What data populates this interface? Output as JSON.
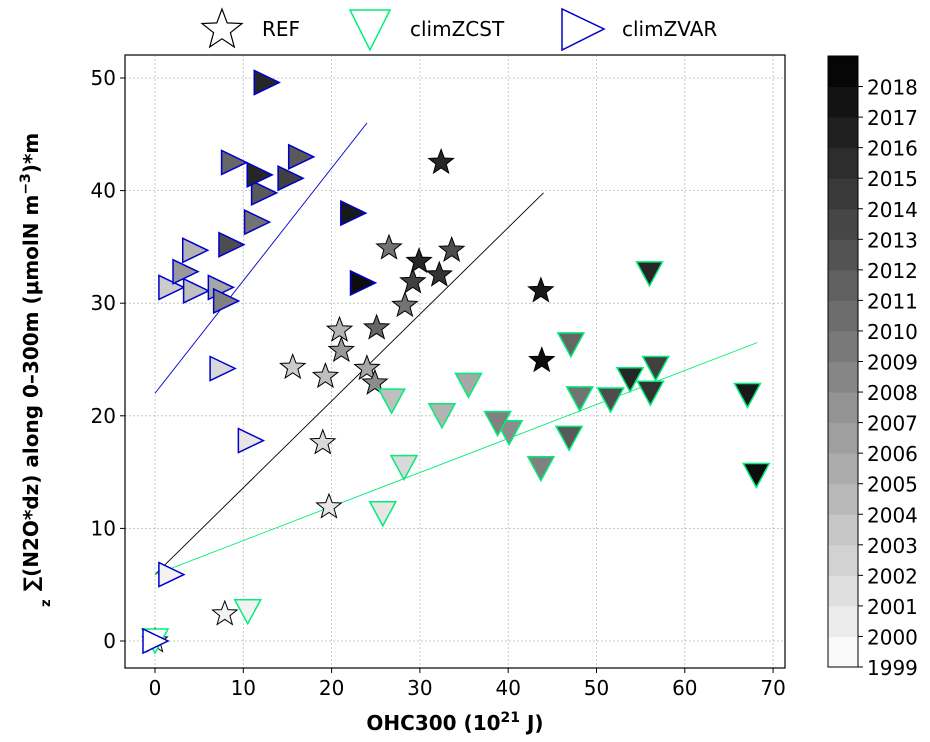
{
  "chart_data": {
    "type": "scatter",
    "title": "",
    "xlabel": "OHC300 (10",
    "xlabel_sup": "21",
    "xlabel_tail": " J)",
    "ylabel": "∑(N2O*dz) along 0–300m (μmolN m",
    "ylabel_sup": "−3",
    "ylabel_tail": ")*m",
    "ylabel_sub": "z",
    "xlim": [
      -3.5,
      71.5
    ],
    "ylim": [
      -2.5,
      52
    ],
    "xticks": [
      0,
      10,
      20,
      30,
      40,
      50,
      60,
      70
    ],
    "yticks": [
      0,
      10,
      20,
      30,
      40,
      50
    ],
    "grid": true,
    "legend_position": "top-center",
    "colorbar": {
      "cmap": "Greys",
      "min": 1999,
      "max": 2019,
      "ticks": [
        1999,
        2000,
        2001,
        2002,
        2003,
        2004,
        2005,
        2006,
        2007,
        2008,
        2009,
        2010,
        2011,
        2012,
        2013,
        2014,
        2015,
        2016,
        2017,
        2018
      ]
    },
    "series": [
      {
        "name": "REF",
        "marker": "star",
        "edge_color": "#000000",
        "fit_line": {
          "x": [
            0,
            44
          ],
          "y": [
            5.9,
            39.8
          ],
          "color": "#000000"
        },
        "points": [
          {
            "x": 0.0,
            "y": 0.0,
            "year": 1999
          },
          {
            "x": 7.9,
            "y": 2.4,
            "year": 2000
          },
          {
            "x": 19.7,
            "y": 11.9,
            "year": 2001
          },
          {
            "x": 19.0,
            "y": 17.6,
            "year": 2002
          },
          {
            "x": 15.6,
            "y": 24.3,
            "year": 2003
          },
          {
            "x": 19.3,
            "y": 23.5,
            "year": 2004
          },
          {
            "x": 20.9,
            "y": 27.6,
            "year": 2005
          },
          {
            "x": 24.0,
            "y": 24.2,
            "year": 2006
          },
          {
            "x": 21.1,
            "y": 25.8,
            "year": 2007
          },
          {
            "x": 24.9,
            "y": 22.9,
            "year": 2008
          },
          {
            "x": 26.5,
            "y": 34.9,
            "year": 2010
          },
          {
            "x": 28.3,
            "y": 29.8,
            "year": 2010
          },
          {
            "x": 25.1,
            "y": 27.8,
            "year": 2011
          },
          {
            "x": 33.6,
            "y": 34.7,
            "year": 2013
          },
          {
            "x": 29.2,
            "y": 31.9,
            "year": 2014
          },
          {
            "x": 32.2,
            "y": 32.5,
            "year": 2015
          },
          {
            "x": 29.9,
            "y": 33.7,
            "year": 2016
          },
          {
            "x": 32.4,
            "y": 42.5,
            "year": 2016
          },
          {
            "x": 43.7,
            "y": 31.1,
            "year": 2017
          },
          {
            "x": 43.8,
            "y": 24.9,
            "year": 2018
          }
        ]
      },
      {
        "name": "climZCST",
        "marker": "triangle-down",
        "edge_color": "#00ee77",
        "fit_line": {
          "x": [
            0,
            68.2
          ],
          "y": [
            5.9,
            26.5
          ],
          "color": "#00ee77"
        },
        "points": [
          {
            "x": 0.0,
            "y": 0.0,
            "year": 1999
          },
          {
            "x": 10.5,
            "y": 2.6,
            "year": 2000
          },
          {
            "x": 25.8,
            "y": 11.3,
            "year": 2001
          },
          {
            "x": 28.2,
            "y": 15.4,
            "year": 2002
          },
          {
            "x": 26.8,
            "y": 21.3,
            "year": 2004
          },
          {
            "x": 32.5,
            "y": 20.0,
            "year": 2005
          },
          {
            "x": 35.5,
            "y": 22.7,
            "year": 2006
          },
          {
            "x": 40.1,
            "y": 18.5,
            "year": 2008
          },
          {
            "x": 38.8,
            "y": 19.3,
            "year": 2009
          },
          {
            "x": 43.7,
            "y": 15.3,
            "year": 2009
          },
          {
            "x": 48.1,
            "y": 21.5,
            "year": 2010
          },
          {
            "x": 47.1,
            "y": 26.3,
            "year": 2011
          },
          {
            "x": 46.9,
            "y": 18.0,
            "year": 2012
          },
          {
            "x": 51.6,
            "y": 21.4,
            "year": 2013
          },
          {
            "x": 56.7,
            "y": 24.2,
            "year": 2014
          },
          {
            "x": 56.1,
            "y": 22.0,
            "year": 2015
          },
          {
            "x": 53.8,
            "y": 23.2,
            "year": 2016
          },
          {
            "x": 56.0,
            "y": 32.6,
            "year": 2016
          },
          {
            "x": 67.1,
            "y": 21.8,
            "year": 2017
          },
          {
            "x": 68.1,
            "y": 14.7,
            "year": 2018
          }
        ]
      },
      {
        "name": "climZVAR",
        "marker": "triangle-right",
        "edge_color": "#0000cc",
        "fit_line": {
          "x": [
            0,
            24
          ],
          "y": [
            22.0,
            46.0
          ],
          "color": "#0000cc"
        },
        "points": [
          {
            "x": 0.0,
            "y": 0.0,
            "year": 1999
          },
          {
            "x": 1.8,
            "y": 5.9,
            "year": 2000
          },
          {
            "x": 10.8,
            "y": 17.8,
            "year": 2001
          },
          {
            "x": 7.6,
            "y": 24.2,
            "year": 2002
          },
          {
            "x": 1.8,
            "y": 31.4,
            "year": 2003
          },
          {
            "x": 4.6,
            "y": 31.1,
            "year": 2004
          },
          {
            "x": 4.5,
            "y": 34.7,
            "year": 2005
          },
          {
            "x": 7.4,
            "y": 31.4,
            "year": 2006
          },
          {
            "x": 3.4,
            "y": 32.8,
            "year": 2007
          },
          {
            "x": 8.0,
            "y": 30.2,
            "year": 2009
          },
          {
            "x": 11.5,
            "y": 37.2,
            "year": 2010
          },
          {
            "x": 8.9,
            "y": 42.5,
            "year": 2011
          },
          {
            "x": 12.3,
            "y": 39.8,
            "year": 2012
          },
          {
            "x": 16.5,
            "y": 43.0,
            "year": 2012
          },
          {
            "x": 8.6,
            "y": 35.2,
            "year": 2013
          },
          {
            "x": 15.3,
            "y": 41.1,
            "year": 2014
          },
          {
            "x": 11.8,
            "y": 41.4,
            "year": 2016
          },
          {
            "x": 12.6,
            "y": 49.6,
            "year": 2016
          },
          {
            "x": 22.4,
            "y": 38.0,
            "year": 2017
          },
          {
            "x": 23.5,
            "y": 31.8,
            "year": 2018
          }
        ]
      }
    ]
  }
}
